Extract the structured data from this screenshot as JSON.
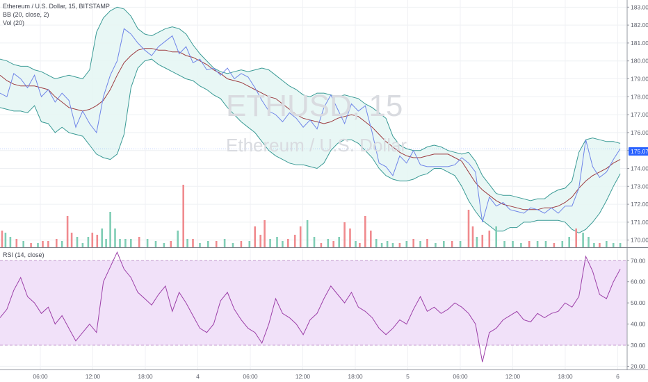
{
  "header": {
    "symbol_line": "Ethereum / U.S. Dollar, 15, BITSTAMP",
    "bb_label": "BB (20, close, 2)",
    "vol_label": "Vol (20)",
    "rsi_label": "RSI (14, close)"
  },
  "watermark": {
    "ticker": "ETHUSD, 15",
    "name": "Ethereum / U.S. Dollar"
  },
  "last_price": "175.07",
  "colors": {
    "price_line": "#6f84e8",
    "bb_band": "#3a9a95",
    "bb_fill": "#e6f6f4",
    "bb_basis": "#9c3a3f",
    "vol_up": "#7fcdb5",
    "vol_down": "#f08a8e",
    "rsi_line": "#9c3fa8",
    "rsi_fill": "#f1e1f9",
    "rsi_band": "#c49bd0",
    "accent": "#2962ff"
  },
  "time_axis": {
    "labels": [
      "06:00",
      "12:00",
      "18:00",
      "4",
      "06:00",
      "12:00",
      "18:00",
      "5",
      "06:00",
      "12:00",
      "18:00",
      "6"
    ]
  },
  "chart_data": [
    {
      "type": "line",
      "title": "Ethereum / U.S. Dollar, 15, BITSTAMP",
      "ylim": [
        169.6,
        183.4
      ],
      "y_ticks": [
        "183.00",
        "182.00",
        "181.00",
        "180.00",
        "179.00",
        "178.00",
        "177.00",
        "176.00",
        "175.00",
        "174.00",
        "173.00",
        "172.00",
        "171.00",
        "170.00"
      ],
      "x": [
        0,
        10,
        20,
        30,
        40,
        50,
        60,
        70,
        80,
        90,
        100,
        110,
        120,
        130,
        140,
        150,
        160,
        170,
        180,
        190,
        200,
        210,
        220,
        230,
        240,
        250,
        260,
        270,
        280,
        290,
        300,
        310,
        320,
        330,
        340,
        350,
        360,
        370,
        380,
        390,
        400,
        410,
        420,
        430,
        440,
        450,
        460,
        470,
        480,
        490,
        500,
        510,
        520,
        530,
        540,
        550,
        560,
        570,
        580,
        590,
        600,
        610,
        620,
        630,
        640,
        650,
        660,
        670,
        680,
        690,
        700,
        710,
        720,
        730,
        740,
        750,
        760,
        770,
        780,
        790,
        800,
        810,
        820,
        830,
        840,
        850,
        860,
        870,
        880,
        890,
        900
      ],
      "series": [
        {
          "values": [
            178.2,
            178.0,
            179.3,
            179.0,
            178.5,
            179.2,
            178.0,
            178.4,
            177.7,
            178.2,
            177.8,
            176.3,
            177.2,
            176.5,
            176.0,
            178.0,
            179.2,
            180.0,
            181.8,
            181.5,
            181.0,
            180.6,
            180.3,
            180.8,
            181.1,
            181.4,
            180.4,
            180.8,
            179.9,
            180.1,
            179.5,
            179.6,
            179.2,
            179.6,
            179.0,
            179.3,
            179.1,
            178.5,
            177.8,
            177.2,
            177.0,
            176.6,
            177.1,
            176.8,
            176.3,
            176.7,
            176.2,
            177.4,
            178.1,
            177.3,
            176.5,
            177.6,
            177.2,
            177.5,
            176.0,
            174.3,
            174.1,
            173.6,
            174.7,
            174.3,
            175.0,
            174.2,
            174.1,
            174.1,
            174.1,
            174.1,
            174.2,
            174.6,
            174.3,
            173.8,
            171.0,
            172.4,
            171.9,
            172.1,
            171.7,
            171.6,
            171.5,
            171.8,
            171.7,
            171.5,
            171.8,
            171.5,
            171.9,
            171.9,
            172.9,
            175.6,
            174.1,
            173.5,
            173.8,
            174.5,
            175.1
          ]
        },
        {
          "values": [
            179.2,
            178.9,
            178.7,
            178.6,
            178.6,
            178.6,
            178.5,
            178.4,
            178.0,
            177.7,
            177.4,
            177.3,
            177.2,
            177.3,
            177.5,
            177.8,
            178.4,
            179.2,
            179.9,
            180.3,
            180.6,
            180.7,
            180.7,
            180.6,
            180.6,
            180.5,
            180.5,
            180.3,
            180.2,
            180.0,
            179.8,
            179.5,
            179.3,
            179.0,
            178.9,
            178.8,
            178.6,
            178.4,
            178.2,
            178.0,
            177.9,
            177.6,
            177.3,
            177.0,
            176.8,
            176.7,
            176.6,
            176.5,
            176.6,
            176.8,
            176.9,
            177.0,
            176.9,
            176.6,
            176.3,
            175.9,
            175.5,
            175.2,
            174.9,
            174.7,
            174.6,
            174.6,
            174.7,
            174.8,
            174.8,
            174.8,
            174.6,
            174.4,
            173.8,
            173.2,
            172.8,
            172.5,
            172.2,
            172.0,
            171.9,
            171.8,
            171.7,
            171.7,
            171.7,
            171.8,
            171.8,
            171.9,
            172.1,
            172.4,
            172.9,
            173.3,
            173.6,
            173.8,
            174.0,
            174.3,
            174.5
          ]
        },
        {
          "values": [
            180.1,
            180.0,
            179.8,
            179.7,
            179.7,
            179.5,
            179.4,
            179.2,
            179.0,
            179.1,
            179.2,
            179.1,
            179.0,
            179.5,
            181.6,
            182.4,
            182.8,
            183.0,
            182.9,
            182.5,
            181.8,
            181.5,
            181.4,
            181.6,
            181.8,
            181.9,
            181.8,
            181.5,
            180.9,
            180.4,
            180.0,
            179.6,
            179.4,
            179.3,
            179.4,
            179.5,
            179.4,
            179.5,
            179.6,
            179.5,
            179.2,
            178.9,
            178.6,
            178.4,
            178.1,
            178.0,
            178.2,
            178.2,
            178.1,
            178.0,
            178.1,
            178.0,
            177.9,
            177.6,
            177.4,
            177.1,
            176.8,
            175.8,
            175.3,
            175.1,
            175.0,
            175.0,
            175.2,
            175.3,
            175.2,
            175.0,
            174.9,
            174.8,
            174.9,
            174.4,
            173.6,
            173.1,
            172.6,
            172.5,
            172.5,
            172.4,
            172.3,
            172.2,
            172.3,
            172.3,
            172.6,
            172.8,
            172.9,
            173.3,
            174.9,
            175.6,
            175.7,
            175.6,
            175.5,
            175.5,
            175.4
          ]
        },
        {
          "values": [
            177.4,
            177.3,
            177.2,
            177.2,
            177.1,
            177.5,
            176.6,
            176.5,
            176.0,
            176.3,
            176.0,
            175.9,
            175.8,
            175.3,
            174.8,
            174.6,
            174.5,
            174.8,
            175.9,
            178.5,
            179.6,
            180.0,
            180.1,
            179.8,
            179.6,
            179.4,
            179.2,
            179.0,
            178.9,
            178.6,
            178.4,
            178.1,
            177.9,
            177.4,
            177.0,
            176.6,
            176.3,
            176.0,
            175.5,
            175.0,
            174.7,
            174.5,
            174.3,
            174.2,
            174.2,
            174.1,
            174.0,
            174.3,
            175.0,
            175.4,
            175.6,
            175.6,
            175.4,
            175.0,
            174.6,
            174.0,
            173.6,
            173.4,
            173.3,
            173.3,
            173.4,
            173.6,
            173.7,
            174.0,
            174.0,
            173.8,
            173.6,
            173.0,
            172.2,
            171.6,
            171.1,
            170.8,
            170.5,
            170.5,
            170.7,
            170.7,
            171.0,
            171.0,
            171.1,
            171.1,
            171.1,
            171.1,
            171.0,
            170.6,
            170.4,
            170.6,
            171.0,
            171.5,
            172.2,
            173.0,
            173.7
          ]
        }
      ]
    },
    {
      "type": "bar",
      "title": "Vol (20)",
      "x": [
        3,
        8,
        15,
        24,
        34,
        45,
        55,
        62,
        70,
        82,
        90,
        98,
        104,
        112,
        120,
        128,
        134,
        141,
        148,
        154,
        160,
        167,
        174,
        182,
        190,
        202,
        214,
        226,
        238,
        248,
        258,
        266,
        272,
        280,
        290,
        302,
        314,
        326,
        338,
        350,
        362,
        370,
        378,
        384,
        392,
        402,
        410,
        418,
        428,
        436,
        446,
        456,
        466,
        476,
        484,
        492,
        500,
        508,
        516,
        522,
        530,
        538,
        546,
        554,
        562,
        570,
        580,
        590,
        600,
        610,
        620,
        632,
        644,
        656,
        668,
        680,
        686,
        692,
        700,
        710,
        720,
        732,
        744,
        756,
        768,
        780,
        792,
        804,
        816,
        826,
        836,
        846,
        854,
        862,
        870,
        880,
        890,
        900
      ],
      "values": [
        8,
        7,
        5,
        4,
        3,
        2,
        2,
        3,
        3,
        4,
        3,
        15,
        7,
        5,
        2,
        5,
        7,
        6,
        9,
        4,
        17,
        9,
        4,
        4,
        4,
        5,
        4,
        3,
        2,
        3,
        8,
        30,
        4,
        4,
        2,
        3,
        3,
        4,
        2,
        3,
        3,
        10,
        6,
        13,
        4,
        5,
        3,
        4,
        6,
        10,
        13,
        5,
        2,
        4,
        3,
        5,
        12,
        9,
        3,
        2,
        15,
        8,
        4,
        2,
        3,
        2,
        2,
        3,
        4,
        3,
        4,
        2,
        3,
        3,
        3,
        18,
        10,
        5,
        6,
        8,
        10,
        3,
        3,
        2,
        3,
        3,
        3,
        2,
        3,
        5,
        9,
        7,
        5,
        2,
        2,
        3,
        2,
        2
      ],
      "directions": [
        "down",
        "up",
        "up",
        "down",
        "up",
        "down",
        "up",
        "down",
        "down",
        "down",
        "up",
        "down",
        "down",
        "up",
        "up",
        "up",
        "down",
        "down",
        "up",
        "up",
        "up",
        "up",
        "up",
        "up",
        "up",
        "down",
        "up",
        "up",
        "up",
        "down",
        "up",
        "down",
        "up",
        "down",
        "up",
        "up",
        "down",
        "up",
        "up",
        "down",
        "up",
        "down",
        "down",
        "down",
        "up",
        "up",
        "up",
        "down",
        "down",
        "down",
        "up",
        "up",
        "down",
        "up",
        "down",
        "up",
        "down",
        "down",
        "up",
        "down",
        "down",
        "down",
        "up",
        "up",
        "up",
        "up",
        "down",
        "up",
        "down",
        "up",
        "down",
        "up",
        "up",
        "down",
        "up",
        "down",
        "down",
        "up",
        "down",
        "down",
        "up",
        "up",
        "up",
        "up",
        "down",
        "up",
        "up",
        "down",
        "up",
        "up",
        "down",
        "up",
        "up",
        "up",
        "down",
        "up",
        "up",
        "up"
      ]
    },
    {
      "type": "line",
      "title": "RSI (14, close)",
      "ylim": [
        18.5,
        76
      ],
      "y_ticks": [
        "70.00",
        "60.00",
        "50.00",
        "40.00",
        "30.00",
        "20.00"
      ],
      "upper_band": 70,
      "lower_band": 30,
      "x": [
        0,
        10,
        20,
        30,
        40,
        50,
        60,
        70,
        80,
        90,
        100,
        110,
        120,
        130,
        140,
        150,
        160,
        170,
        180,
        190,
        200,
        210,
        220,
        230,
        240,
        250,
        260,
        270,
        280,
        290,
        300,
        310,
        320,
        330,
        340,
        350,
        360,
        370,
        380,
        390,
        400,
        410,
        420,
        430,
        440,
        450,
        460,
        470,
        480,
        490,
        500,
        510,
        520,
        530,
        540,
        550,
        560,
        570,
        580,
        590,
        600,
        610,
        620,
        630,
        640,
        650,
        660,
        670,
        680,
        690,
        700,
        710,
        720,
        730,
        740,
        750,
        760,
        770,
        780,
        790,
        800,
        810,
        820,
        830,
        840,
        850,
        860,
        870,
        880,
        890,
        900
      ],
      "values": [
        43,
        47,
        56,
        62,
        53,
        50,
        45,
        48,
        40,
        44,
        38,
        32,
        36,
        40,
        36,
        60,
        67,
        74,
        66,
        62,
        55,
        52,
        49,
        54,
        58,
        46,
        55,
        50,
        44,
        38,
        36,
        40,
        51,
        55,
        47,
        42,
        38,
        36,
        31,
        40,
        52,
        45,
        43,
        40,
        35,
        42,
        45,
        52,
        58,
        54,
        50,
        55,
        48,
        46,
        43,
        38,
        35,
        38,
        42,
        40,
        47,
        53,
        46,
        48,
        45,
        47,
        50,
        48,
        45,
        40,
        22,
        36,
        38,
        42,
        44,
        46,
        42,
        41,
        45,
        43,
        45,
        46,
        50,
        48,
        53,
        72,
        65,
        54,
        52,
        60,
        66
      ]
    }
  ]
}
